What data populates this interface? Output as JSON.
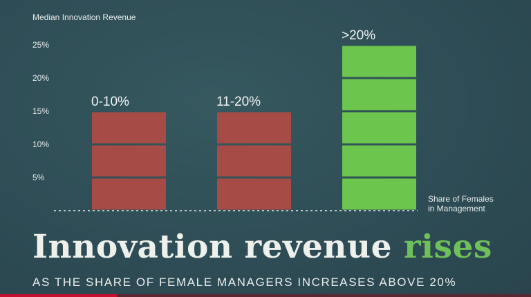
{
  "chart_data": {
    "type": "bar",
    "ylabel": "Median Innovation Revenue",
    "xlabel": "Share of Females\nin Management",
    "categories": [
      "0-10%",
      "11-20%",
      ">20%"
    ],
    "values": [
      15,
      15,
      25
    ],
    "bar_colors": [
      "#a64b45",
      "#a64b45",
      "#6cc54c"
    ],
    "ylim": [
      0,
      25
    ],
    "yticks": [
      5,
      10,
      15,
      20,
      25
    ],
    "grid": false
  },
  "headline": {
    "text_main": "Innovation revenue ",
    "text_accent": "rises",
    "accent_color": "#6fbf5a"
  },
  "subheadline": "AS THE SHARE OF FEMALE MANAGERS INCREASES ABOVE 20%",
  "video_progress": 0.22
}
